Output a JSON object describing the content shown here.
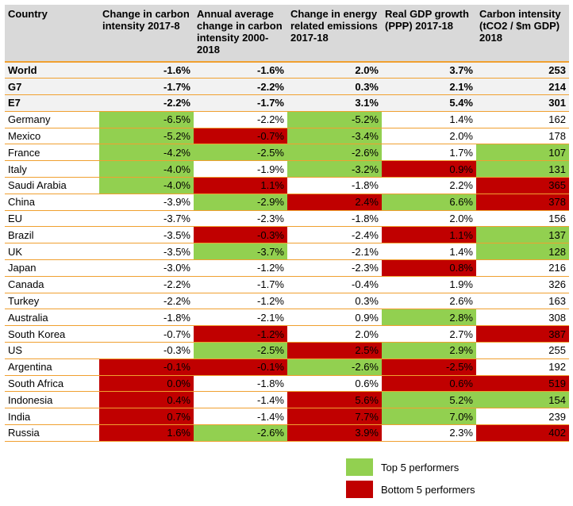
{
  "colors": {
    "top": "#92d050",
    "bottom": "#c00000",
    "header_bg": "#d9d9d9",
    "rule": "#f0a030"
  },
  "headers": [
    "Country",
    "Change in carbon intensity 2017-8",
    "Annual average change in carbon intensity 2000-2018",
    "Change in energy related emissions 2017-18",
    "Real GDP growth (PPP) 2017-18",
    "Carbon intensity (tCO2 / $m GDP) 2018"
  ],
  "rows": [
    {
      "name": "World",
      "agg": true,
      "cells": [
        [
          "-1.6%",
          ""
        ],
        [
          "-1.6%",
          ""
        ],
        [
          "2.0%",
          ""
        ],
        [
          "3.7%",
          ""
        ],
        [
          "253",
          ""
        ]
      ]
    },
    {
      "name": "G7",
      "agg": true,
      "cells": [
        [
          "-1.7%",
          ""
        ],
        [
          "-2.2%",
          ""
        ],
        [
          "0.3%",
          ""
        ],
        [
          "2.1%",
          ""
        ],
        [
          "214",
          ""
        ]
      ]
    },
    {
      "name": "E7",
      "agg": true,
      "cells": [
        [
          "-2.2%",
          ""
        ],
        [
          "-1.7%",
          ""
        ],
        [
          "3.1%",
          ""
        ],
        [
          "5.4%",
          ""
        ],
        [
          "301",
          ""
        ]
      ]
    },
    {
      "name": "Germany",
      "cells": [
        [
          "-6.5%",
          "top"
        ],
        [
          "-2.2%",
          ""
        ],
        [
          "-5.2%",
          "top"
        ],
        [
          "1.4%",
          ""
        ],
        [
          "162",
          ""
        ]
      ]
    },
    {
      "name": "Mexico",
      "cells": [
        [
          "-5.2%",
          "top"
        ],
        [
          "-0.7%",
          "bottom"
        ],
        [
          "-3.4%",
          "top"
        ],
        [
          "2.0%",
          ""
        ],
        [
          "178",
          ""
        ]
      ]
    },
    {
      "name": "France",
      "cells": [
        [
          "-4.2%",
          "top"
        ],
        [
          "-2.5%",
          "top"
        ],
        [
          "-2.6%",
          "top"
        ],
        [
          "1.7%",
          ""
        ],
        [
          "107",
          "top"
        ]
      ]
    },
    {
      "name": "Italy",
      "cells": [
        [
          "-4.0%",
          "top"
        ],
        [
          "-1.9%",
          ""
        ],
        [
          "-3.2%",
          "top"
        ],
        [
          "0.9%",
          "bottom"
        ],
        [
          "131",
          "top"
        ]
      ]
    },
    {
      "name": "Saudi Arabia",
      "cells": [
        [
          "-4.0%",
          "top"
        ],
        [
          "1.1%",
          "bottom"
        ],
        [
          "-1.8%",
          ""
        ],
        [
          "2.2%",
          ""
        ],
        [
          "365",
          "bottom"
        ]
      ]
    },
    {
      "name": "China",
      "cells": [
        [
          "-3.9%",
          ""
        ],
        [
          "-2.9%",
          "top"
        ],
        [
          "2.4%",
          "bottom"
        ],
        [
          "6.6%",
          "top"
        ],
        [
          "378",
          "bottom"
        ]
      ]
    },
    {
      "name": "EU",
      "cells": [
        [
          "-3.7%",
          ""
        ],
        [
          "-2.3%",
          ""
        ],
        [
          "-1.8%",
          ""
        ],
        [
          "2.0%",
          ""
        ],
        [
          "156",
          ""
        ]
      ]
    },
    {
      "name": "Brazil",
      "cells": [
        [
          "-3.5%",
          ""
        ],
        [
          "-0.3%",
          "bottom"
        ],
        [
          "-2.4%",
          ""
        ],
        [
          "1.1%",
          "bottom"
        ],
        [
          "137",
          "top"
        ]
      ]
    },
    {
      "name": "UK",
      "cells": [
        [
          "-3.5%",
          ""
        ],
        [
          "-3.7%",
          "top"
        ],
        [
          "-2.1%",
          ""
        ],
        [
          "1.4%",
          ""
        ],
        [
          "128",
          "top"
        ]
      ]
    },
    {
      "name": "Japan",
      "cells": [
        [
          "-3.0%",
          ""
        ],
        [
          "-1.2%",
          ""
        ],
        [
          "-2.3%",
          ""
        ],
        [
          "0.8%",
          "bottom"
        ],
        [
          "216",
          ""
        ]
      ]
    },
    {
      "name": "Canada",
      "cells": [
        [
          "-2.2%",
          ""
        ],
        [
          "-1.7%",
          ""
        ],
        [
          "-0.4%",
          ""
        ],
        [
          "1.9%",
          ""
        ],
        [
          "326",
          ""
        ]
      ]
    },
    {
      "name": "Turkey",
      "cells": [
        [
          "-2.2%",
          ""
        ],
        [
          "-1.2%",
          ""
        ],
        [
          "0.3%",
          ""
        ],
        [
          "2.6%",
          ""
        ],
        [
          "163",
          ""
        ]
      ]
    },
    {
      "name": "Australia",
      "cells": [
        [
          "-1.8%",
          ""
        ],
        [
          "-2.1%",
          ""
        ],
        [
          "0.9%",
          ""
        ],
        [
          "2.8%",
          "top"
        ],
        [
          "308",
          ""
        ]
      ]
    },
    {
      "name": "South Korea",
      "cells": [
        [
          "-0.7%",
          ""
        ],
        [
          "-1.2%",
          "bottom"
        ],
        [
          "2.0%",
          ""
        ],
        [
          "2.7%",
          ""
        ],
        [
          "387",
          "bottom"
        ]
      ]
    },
    {
      "name": "US",
      "cells": [
        [
          "-0.3%",
          ""
        ],
        [
          "-2.5%",
          "top"
        ],
        [
          "2.5%",
          "bottom"
        ],
        [
          "2.9%",
          "top"
        ],
        [
          "255",
          ""
        ]
      ]
    },
    {
      "name": "Argentina",
      "cells": [
        [
          "-0.1%",
          "bottom"
        ],
        [
          "-0.1%",
          "bottom"
        ],
        [
          "-2.6%",
          "top"
        ],
        [
          "-2.5%",
          "bottom"
        ],
        [
          "192",
          ""
        ]
      ]
    },
    {
      "name": "South Africa",
      "cells": [
        [
          "0.0%",
          "bottom"
        ],
        [
          "-1.8%",
          ""
        ],
        [
          "0.6%",
          ""
        ],
        [
          "0.6%",
          "bottom"
        ],
        [
          "519",
          "bottom"
        ]
      ]
    },
    {
      "name": "Indonesia",
      "cells": [
        [
          "0.4%",
          "bottom"
        ],
        [
          "-1.4%",
          ""
        ],
        [
          "5.6%",
          "bottom"
        ],
        [
          "5.2%",
          "top"
        ],
        [
          "154",
          "top"
        ]
      ]
    },
    {
      "name": "India",
      "cells": [
        [
          "0.7%",
          "bottom"
        ],
        [
          "-1.4%",
          ""
        ],
        [
          "7.7%",
          "bottom"
        ],
        [
          "7.0%",
          "top"
        ],
        [
          "239",
          ""
        ]
      ]
    },
    {
      "name": "Russia",
      "cells": [
        [
          "1.6%",
          "bottom"
        ],
        [
          "-2.6%",
          "top"
        ],
        [
          "3.9%",
          "bottom"
        ],
        [
          "2.3%",
          ""
        ],
        [
          "402",
          "bottom"
        ]
      ]
    }
  ],
  "legend": {
    "top_label": "Top 5 performers",
    "bottom_label": "Bottom 5 performers"
  }
}
